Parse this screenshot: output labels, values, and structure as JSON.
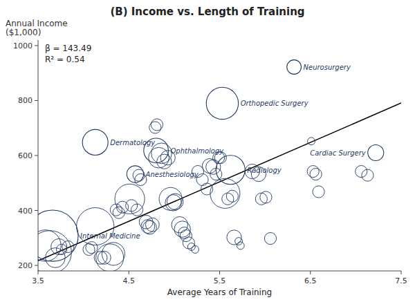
{
  "chart_data": {
    "type": "scatter",
    "title": "(B)   Income vs. Length of Training",
    "x_label": "Average Years of Training",
    "y_label": [
      "Annual Income",
      "($1,000)"
    ],
    "annotations": [
      "β = 143.49",
      "R² = 0.54"
    ],
    "xlim": [
      3.5,
      7.5
    ],
    "ylim": [
      180,
      1020
    ],
    "xticks": [
      3.5,
      4.5,
      5.5,
      6.5,
      7.5
    ],
    "yticks": [
      200,
      400,
      600,
      800,
      1000
    ],
    "grid": false,
    "series": [
      {
        "type": "line",
        "color": "#000000",
        "x": [
          3.5,
          7.5
        ],
        "values": [
          217,
          791
        ]
      },
      {
        "type": "scatter",
        "color": "#1f3864",
        "x": [
          3.58,
          3.63,
          3.69,
          3.73,
          3.76,
          3.83,
          4.06,
          4.09,
          4.13,
          4.19,
          4.23,
          4.29,
          4.33,
          4.36,
          4.39,
          4.43,
          4.51,
          4.53,
          4.59,
          4.61,
          4.63,
          4.69,
          4.71,
          4.73,
          4.76,
          4.79,
          4.81,
          4.83,
          4.86,
          4.89,
          4.93,
          4.96,
          4.99,
          5.01,
          5.06,
          5.09,
          5.11,
          5.13,
          5.16,
          5.19,
          5.23,
          5.26,
          5.31,
          5.36,
          5.39,
          5.43,
          5.46,
          5.49,
          5.51,
          5.56,
          5.59,
          5.64,
          5.66,
          5.71,
          5.73,
          5.86,
          5.93,
          5.96,
          6.01,
          6.06,
          6.51,
          6.53,
          6.56,
          6.59,
          7.06,
          7.13
        ],
        "values": [
          272,
          248,
          228,
          268,
          258,
          268,
          258,
          265,
          342,
          228,
          228,
          228,
          242,
          402,
          392,
          412,
          442,
          418,
          402,
          528,
          512,
          358,
          342,
          338,
          348,
          702,
          712,
          592,
          608,
          578,
          592,
          442,
          428,
          432,
          348,
          332,
          318,
          308,
          282,
          268,
          258,
          542,
          512,
          478,
          562,
          558,
          532,
          592,
          592,
          462,
          442,
          452,
          302,
          288,
          272,
          542,
          532,
          442,
          448,
          298,
          652,
          542,
          532,
          468,
          542,
          528
        ],
        "size": [
          1050,
          2000,
          420,
          270,
          120,
          150,
          150,
          150,
          1500,
          180,
          180,
          820,
          560,
          150,
          150,
          150,
          950,
          150,
          150,
          150,
          150,
          200,
          200,
          200,
          200,
          150,
          150,
          450,
          450,
          230,
          230,
          560,
          280,
          280,
          280,
          280,
          150,
          150,
          150,
          60,
          60,
          150,
          150,
          150,
          230,
          230,
          150,
          150,
          150,
          950,
          150,
          150,
          230,
          60,
          60,
          230,
          230,
          150,
          150,
          150,
          60,
          150,
          150,
          150,
          150,
          150
        ]
      },
      {
        "type": "scatter",
        "color": "#1f3864",
        "x": [
          3.66,
          4.13,
          4.8,
          4.57,
          5.53,
          6.32,
          5.62,
          7.22
        ],
        "values": [
          308,
          648,
          618,
          532,
          790,
          922,
          548,
          610
        ],
        "size": [
          2800,
          700,
          650,
          300,
          1100,
          220,
          900,
          270
        ],
        "labels": [
          "Internal Medicine",
          "Dermatology",
          "Ophthalmology",
          "Anesthesiology",
          "Orthopedic Surgery",
          "Neurosurgery",
          "Radiology",
          "Cardiac Surgery"
        ]
      }
    ]
  }
}
